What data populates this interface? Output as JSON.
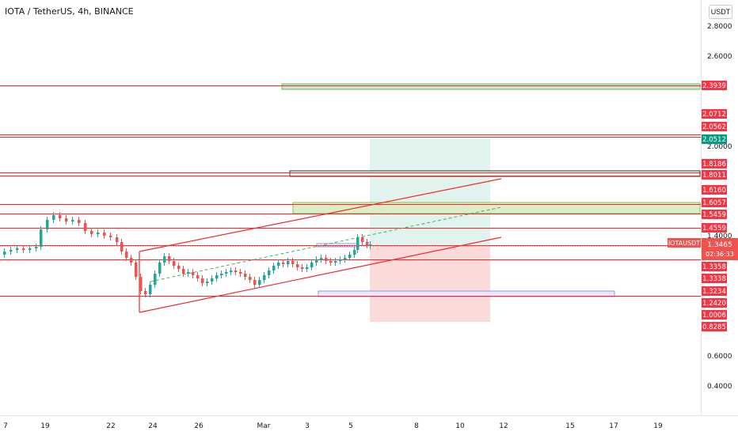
{
  "header": {
    "title": "IOTA / TetherUS, 4h, BINANCE",
    "currency_button": "USDT"
  },
  "price_badge": {
    "symbol": "IOTAUSDT",
    "price": "1.3465",
    "countdown": "02:36:33",
    "color": "#ef5350"
  },
  "colors": {
    "up": "#26a69a",
    "down": "#ef5350",
    "level_line": "#ef2b2b",
    "target_zone": "#e0f3ee",
    "stop_zone": "#fbdada",
    "support_box": "#9c93e8",
    "resistance_box": "#c8e6c9"
  },
  "chart_data": {
    "type": "candlestick",
    "axis_labels": [
      "2.8000",
      "2.6000",
      "2.0000",
      "1.4000",
      "0.6000",
      "0.4000"
    ],
    "level_labels": [
      {
        "label": "2.3939",
        "style": "red"
      },
      {
        "label": "2.0712",
        "style": "red"
      },
      {
        "label": "2.0562",
        "style": "red"
      },
      {
        "label": "2.0512",
        "style": "teal"
      },
      {
        "label": "1.8186",
        "style": "red"
      },
      {
        "label": "1.8011",
        "style": "red"
      },
      {
        "label": "1.6160",
        "style": "red"
      },
      {
        "label": "1.6057",
        "style": "red"
      },
      {
        "label": "1.5459",
        "style": "red"
      },
      {
        "label": "1.4559",
        "style": "red"
      },
      {
        "label": "1.3358",
        "style": "red"
      },
      {
        "label": "1.3338",
        "style": "red"
      },
      {
        "label": "1.3234",
        "style": "red"
      },
      {
        "label": "1.2420",
        "style": "red"
      },
      {
        "label": "1.0006",
        "style": "red"
      },
      {
        "label": "0.8285",
        "style": "red"
      }
    ],
    "x_ticks": [
      "7",
      "19",
      "22",
      "24",
      "26",
      "Mar",
      "3",
      "5",
      "8",
      "10",
      "12",
      "15",
      "17",
      "19"
    ],
    "current_price": 1.3465,
    "grid": false
  }
}
